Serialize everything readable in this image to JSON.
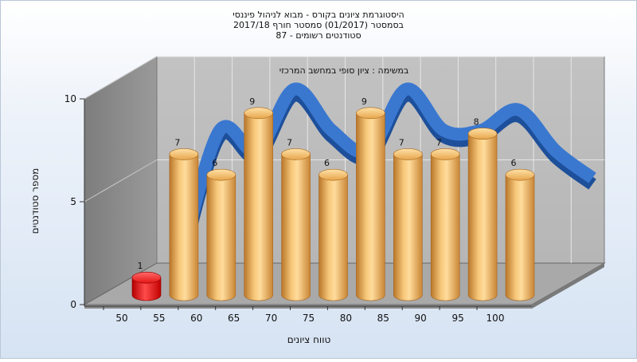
{
  "chart_data": {
    "type": "bar",
    "title_lines": [
      "היסטוגרמת ציונים בקורס - מבוא לניהול פיננסי",
      "בסמסטר  (01/2017)  סמסטר חורף 2017/18",
      "סטודנטים רשומים - 87"
    ],
    "annotation": "במשימה : ציון סופי במחשב המרכזי",
    "ylabel": "מספר סטודנטים",
    "xlabel": "טווח ציונים",
    "ylim": [
      0,
      10
    ],
    "y_ticks": [
      0,
      5,
      10
    ],
    "x_ticks": [
      "50",
      "55",
      "60",
      "65",
      "70",
      "75",
      "80",
      "85",
      "90",
      "95",
      "100"
    ],
    "bars": [
      {
        "x": 50,
        "value": 1
      },
      {
        "x": 55,
        "value": 7
      },
      {
        "x": 60,
        "value": 6
      },
      {
        "x": 65,
        "value": 9
      },
      {
        "x": 70,
        "value": 7
      },
      {
        "x": 75,
        "value": 6
      },
      {
        "x": 80,
        "value": 9
      },
      {
        "x": 85,
        "value": 7
      },
      {
        "x": 90,
        "value": 7
      },
      {
        "x": 95,
        "value": 8
      },
      {
        "x": 100,
        "value": 6
      }
    ],
    "trend_line": {
      "type": "smoothed ribbon"
    },
    "grid": true,
    "legend": "none",
    "colors": {
      "bar": "#e8a346",
      "bar_highlight": "#ff2020",
      "trend": "#2f6cc4",
      "back_wall": "#bdbdbd",
      "side_wall": "#8f8f8f",
      "floor": "#a8a8a8"
    }
  }
}
